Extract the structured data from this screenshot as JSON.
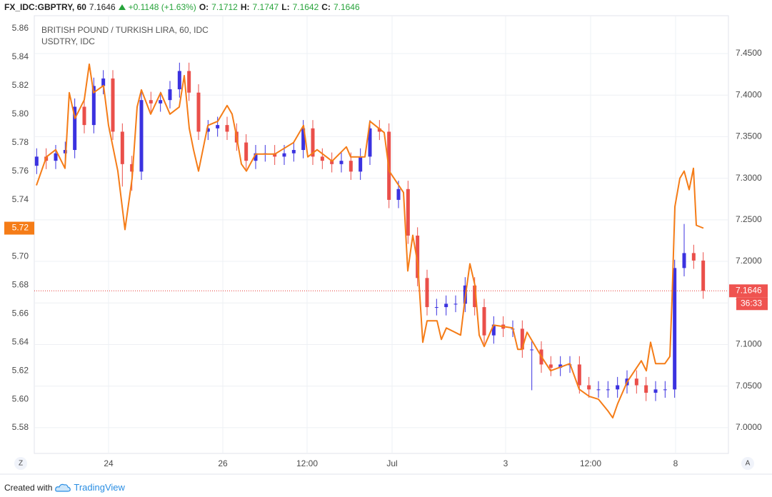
{
  "header": {
    "symbol": "FX_IDC:GBPTRY, 60",
    "last": "7.1646",
    "change": "+0.1148 (+1.63%)",
    "ohlc": [
      {
        "label": "O:",
        "value": "7.1712"
      },
      {
        "label": "H:",
        "value": "7.1747"
      },
      {
        "label": "L:",
        "value": "7.1642"
      },
      {
        "label": "C:",
        "value": "7.1646"
      }
    ]
  },
  "chart_data": {
    "type": "candlestick",
    "x": [
      1,
      5,
      9,
      13,
      17,
      21,
      25,
      29,
      33,
      37,
      41,
      45,
      49,
      53,
      57,
      61,
      65,
      69,
      73,
      77,
      81,
      85,
      89,
      93,
      97,
      101,
      105,
      109,
      113,
      117,
      121,
      125,
      129,
      133,
      137,
      141,
      145,
      149,
      153,
      157,
      161,
      165,
      169,
      173,
      177,
      181,
      185,
      189,
      193,
      197,
      201,
      205,
      209,
      213,
      217,
      221,
      225,
      229,
      233,
      237,
      241,
      245,
      249,
      253,
      257,
      261,
      265,
      269,
      273,
      277,
      281
    ],
    "series": [
      {
        "name": "BRITISH POUND / TURKISH LIRA, 60, IDC",
        "axis": "y2",
        "up_color": "#3b32e0",
        "down_color": "#ea4f4a",
        "open": [
          7.315,
          7.326,
          7.321,
          7.33,
          7.334,
          7.386,
          7.364,
          7.411,
          7.42,
          7.356,
          7.317,
          7.308,
          7.394,
          7.39,
          7.394,
          7.407,
          7.429,
          7.403,
          7.356,
          7.36,
          7.364,
          7.356,
          7.343,
          7.321,
          7.33,
          7.33,
          7.326,
          7.33,
          7.334,
          7.36,
          7.326,
          7.321,
          7.317,
          7.321,
          7.308,
          7.326,
          7.36,
          7.356,
          7.274,
          7.287,
          7.231,
          7.18,
          7.145,
          7.145,
          7.149,
          7.149,
          7.171,
          7.145,
          7.111,
          7.124,
          7.119,
          7.119,
          7.094,
          7.094,
          7.076,
          7.072,
          7.076,
          7.076,
          7.051,
          7.046,
          7.046,
          7.046,
          7.051,
          7.059,
          7.051,
          7.042,
          7.046,
          7.046,
          7.192,
          7.21,
          7.201
        ],
        "high": [
          7.336,
          7.336,
          7.34,
          7.344,
          7.396,
          7.396,
          7.421,
          7.43,
          7.43,
          7.366,
          7.327,
          7.404,
          7.404,
          7.404,
          7.417,
          7.439,
          7.439,
          7.413,
          7.37,
          7.374,
          7.374,
          7.366,
          7.353,
          7.34,
          7.34,
          7.34,
          7.34,
          7.344,
          7.37,
          7.37,
          7.336,
          7.331,
          7.331,
          7.331,
          7.336,
          7.37,
          7.37,
          7.366,
          7.297,
          7.297,
          7.241,
          7.19,
          7.155,
          7.159,
          7.159,
          7.181,
          7.181,
          7.155,
          7.134,
          7.134,
          7.129,
          7.129,
          7.104,
          7.104,
          7.086,
          7.086,
          7.086,
          7.086,
          7.061,
          7.056,
          7.056,
          7.061,
          7.069,
          7.069,
          7.061,
          7.056,
          7.056,
          7.202,
          7.245,
          7.22,
          7.211
        ],
        "low": [
          7.305,
          7.311,
          7.311,
          7.32,
          7.324,
          7.354,
          7.354,
          7.401,
          7.346,
          7.29,
          7.285,
          7.298,
          7.38,
          7.38,
          7.384,
          7.397,
          7.393,
          7.346,
          7.346,
          7.35,
          7.346,
          7.333,
          7.311,
          7.311,
          7.32,
          7.316,
          7.316,
          7.32,
          7.324,
          7.316,
          7.311,
          7.307,
          7.307,
          7.298,
          7.298,
          7.316,
          7.346,
          7.264,
          7.264,
          7.221,
          7.17,
          7.135,
          7.135,
          7.135,
          7.139,
          7.139,
          7.135,
          7.101,
          7.101,
          7.109,
          7.109,
          7.084,
          7.045,
          7.066,
          7.062,
          7.062,
          7.066,
          7.041,
          7.036,
          7.036,
          7.036,
          7.036,
          7.041,
          7.041,
          7.032,
          7.032,
          7.036,
          7.036,
          7.182,
          7.191,
          7.155
        ],
        "close": [
          7.326,
          7.321,
          7.33,
          7.334,
          7.386,
          7.364,
          7.411,
          7.42,
          7.356,
          7.317,
          7.308,
          7.394,
          7.39,
          7.394,
          7.407,
          7.429,
          7.403,
          7.356,
          7.36,
          7.364,
          7.356,
          7.343,
          7.321,
          7.33,
          7.33,
          7.326,
          7.33,
          7.334,
          7.36,
          7.326,
          7.321,
          7.317,
          7.321,
          7.308,
          7.326,
          7.36,
          7.356,
          7.274,
          7.287,
          7.231,
          7.18,
          7.145,
          7.145,
          7.149,
          7.149,
          7.171,
          7.145,
          7.111,
          7.124,
          7.119,
          7.119,
          7.094,
          7.094,
          7.076,
          7.072,
          7.076,
          7.076,
          7.051,
          7.046,
          7.046,
          7.046,
          7.051,
          7.059,
          7.051,
          7.042,
          7.046,
          7.046,
          7.192,
          7.21,
          7.201,
          7.1646
        ]
      },
      {
        "name": "USDTRY, IDC",
        "type": "line",
        "axis": "y",
        "color": "#f57c17",
        "x": [
          0.9,
          5.1,
          9.0,
          12.9,
          14.7,
          17.1,
          21.0,
          23.1,
          24.9,
          29.1,
          31.2,
          35.1,
          38.1,
          41.1,
          43.2,
          45.0,
          48.9,
          53.1,
          57.0,
          60.9,
          63.0,
          65.1,
          66.9,
          69.0,
          72.9,
          77.1,
          81.0,
          83.1,
          84.9,
          87.0,
          89.1,
          93.0,
          101.1,
          108.9,
          113.1,
          114.9,
          118.8,
          125.1,
          131.1,
          132.9,
          138.9,
          141.0,
          147.0,
          149.1,
          155.1,
          156.9,
          159.0,
          161.1,
          163.2,
          165.0,
          169.2,
          171.0,
          173.1,
          179.1,
          180.9,
          183.0,
          185.1,
          186.9,
          189.0,
          192.9,
          201.0,
          203.1,
          204.9,
          207.0,
          213.0,
          216.9,
          225.0,
          228.9,
          233.1,
          237.0,
          240.9,
          243.0,
          245.1,
          249.0,
          255.0,
          257.1,
          258.9,
          261.0,
          264.9,
          267.0,
          267.9,
          269.1,
          271.2,
          273.0,
          275.1,
          276.9,
          278.1,
          281.1
        ],
        "values": [
          5.75,
          5.77,
          5.775,
          5.762,
          5.815,
          5.797,
          5.81,
          5.835,
          5.815,
          5.82,
          5.792,
          5.76,
          5.719,
          5.755,
          5.805,
          5.817,
          5.8,
          5.815,
          5.8,
          5.805,
          5.827,
          5.79,
          5.775,
          5.76,
          5.792,
          5.795,
          5.806,
          5.8,
          5.785,
          5.765,
          5.76,
          5.772,
          5.772,
          5.78,
          5.792,
          5.77,
          5.775,
          5.767,
          5.777,
          5.77,
          5.77,
          5.795,
          5.787,
          5.76,
          5.745,
          5.69,
          5.715,
          5.695,
          5.64,
          5.655,
          5.655,
          5.642,
          5.65,
          5.645,
          5.67,
          5.695,
          5.68,
          5.645,
          5.637,
          5.652,
          5.65,
          5.635,
          5.635,
          5.647,
          5.63,
          5.62,
          5.625,
          5.607,
          5.602,
          5.6,
          5.592,
          5.587,
          5.597,
          5.612,
          5.627,
          5.62,
          5.64,
          5.625,
          5.625,
          5.63,
          5.67,
          5.735,
          5.755,
          5.76,
          5.747,
          5.762,
          5.722,
          5.72
        ]
      }
    ],
    "xlim": [
      0,
      291.6
    ],
    "xticks": [
      {
        "value": 31.2,
        "label": "24"
      },
      {
        "value": 79.2,
        "label": "26"
      },
      {
        "value": 114.6,
        "label": "12:00"
      },
      {
        "value": 150.3,
        "label": "Jul"
      },
      {
        "value": 198,
        "label": "3"
      },
      {
        "value": 233.7,
        "label": "12:00"
      },
      {
        "value": 269.4,
        "label": "8"
      }
    ],
    "ylim": [
      5.562,
      5.869
    ],
    "yticks": [
      5.58,
      {
        "value": 5.6,
        "label": "5.60"
      },
      5.62,
      5.64,
      5.66,
      5.68,
      {
        "value": 5.7,
        "label": "5.70"
      },
      5.72,
      5.74,
      5.76,
      5.78,
      {
        "value": 5.8,
        "label": "5.80"
      },
      5.82,
      5.84,
      5.86
    ],
    "y2lim": [
      6.969,
      7.4955
    ],
    "y2ticks": [
      {
        "value": 7.0,
        "label": "7.0000"
      },
      {
        "value": 7.05,
        "label": "7.0500"
      },
      {
        "value": 7.1,
        "label": "7.1000"
      },
      {
        "value": 7.15,
        "label": "7.1500"
      },
      {
        "value": 7.2,
        "label": "7.2000"
      },
      {
        "value": 7.25,
        "label": "7.2500"
      },
      {
        "value": 7.3,
        "label": "7.3000"
      },
      {
        "value": 7.35,
        "label": "7.3500"
      },
      {
        "value": 7.4,
        "label": "7.4000"
      },
      {
        "value": 7.45,
        "label": "7.4500"
      }
    ],
    "grid": true,
    "countdown": "36:33"
  },
  "buttons": [
    "Z",
    "A"
  ],
  "footer": {
    "text": "Created with",
    "brand": "TradingView"
  }
}
